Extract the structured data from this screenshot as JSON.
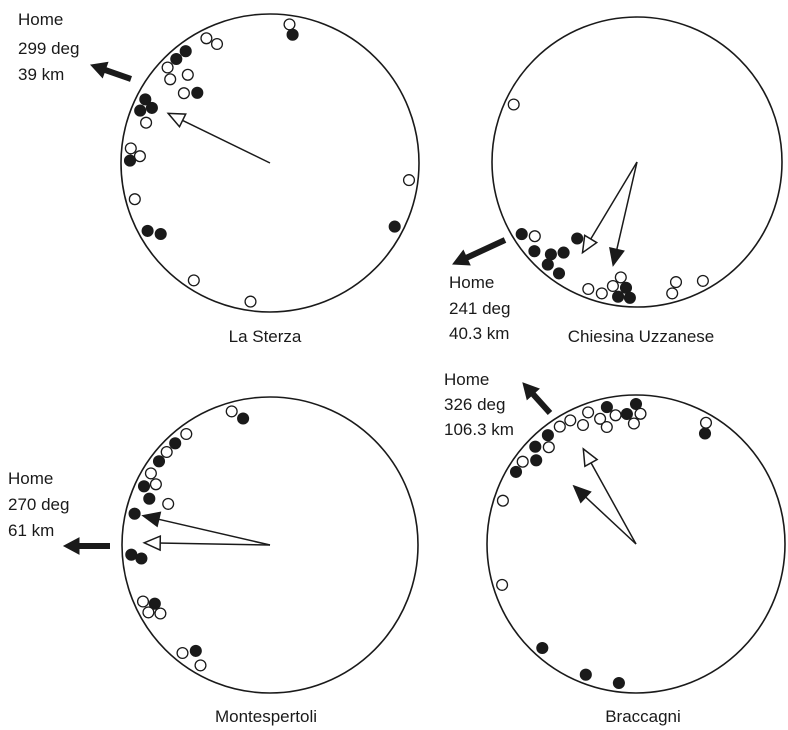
{
  "colors": {
    "ink": "#1a1a1a",
    "background": "#ffffff"
  },
  "legend_symbols": {
    "filled": "filled-circle",
    "open": "open-circle"
  },
  "panels": [
    {
      "id": "la-sterza",
      "site_name": "La Sterza",
      "home": {
        "label": "Home",
        "bearing_text": "299 deg",
        "distance_text": "39 km",
        "bearing_deg": 299
      },
      "mean_vectors": [
        {
          "kind": "open",
          "bearing_deg": 296,
          "length": 0.76
        }
      ],
      "points": [
        {
          "bearing_deg": 8,
          "kind": "open"
        },
        {
          "bearing_deg": 10,
          "kind": "filled"
        },
        {
          "bearing_deg": 333,
          "kind": "open"
        },
        {
          "bearing_deg": 336,
          "kind": "open"
        },
        {
          "bearing_deg": 323,
          "kind": "filled"
        },
        {
          "bearing_deg": 318,
          "kind": "filled"
        },
        {
          "bearing_deg": 317,
          "kind": "open"
        },
        {
          "bearing_deg": 313,
          "kind": "open"
        },
        {
          "bearing_deg": 310,
          "kind": "open"
        },
        {
          "bearing_deg": 309,
          "kind": "open"
        },
        {
          "bearing_deg": 314,
          "kind": "filled"
        },
        {
          "bearing_deg": 297,
          "kind": "filled"
        },
        {
          "bearing_deg": 295,
          "kind": "filled"
        },
        {
          "bearing_deg": 292,
          "kind": "filled"
        },
        {
          "bearing_deg": 288,
          "kind": "open"
        },
        {
          "bearing_deg": 276,
          "kind": "open"
        },
        {
          "bearing_deg": 273,
          "kind": "open"
        },
        {
          "bearing_deg": 271,
          "kind": "filled"
        },
        {
          "bearing_deg": 255,
          "kind": "open"
        },
        {
          "bearing_deg": 241,
          "kind": "filled"
        },
        {
          "bearing_deg": 237,
          "kind": "filled"
        },
        {
          "bearing_deg": 213,
          "kind": "open"
        },
        {
          "bearing_deg": 188,
          "kind": "open"
        },
        {
          "bearing_deg": 97,
          "kind": "open"
        },
        {
          "bearing_deg": 117,
          "kind": "filled"
        }
      ]
    },
    {
      "id": "chiesina-uzzanese",
      "site_name": "Chiesina Uzzanese",
      "home": {
        "label": "Home",
        "bearing_text": "241 deg",
        "distance_text": "40.3 km",
        "bearing_deg": 241
      },
      "mean_vectors": [
        {
          "kind": "open",
          "bearing_deg": 211,
          "length": 0.73
        },
        {
          "kind": "filled",
          "bearing_deg": 193,
          "length": 0.73
        }
      ],
      "points": [
        {
          "bearing_deg": 295,
          "kind": "open"
        },
        {
          "bearing_deg": 238,
          "kind": "filled"
        },
        {
          "bearing_deg": 234,
          "kind": "open"
        },
        {
          "bearing_deg": 229,
          "kind": "filled"
        },
        {
          "bearing_deg": 221,
          "kind": "filled"
        },
        {
          "bearing_deg": 223,
          "kind": "filled"
        },
        {
          "bearing_deg": 219,
          "kind": "filled"
        },
        {
          "bearing_deg": 218,
          "kind": "filled"
        },
        {
          "bearing_deg": 215,
          "kind": "filled"
        },
        {
          "bearing_deg": 201,
          "kind": "open"
        },
        {
          "bearing_deg": 195,
          "kind": "open"
        },
        {
          "bearing_deg": 191,
          "kind": "open"
        },
        {
          "bearing_deg": 188,
          "kind": "filled"
        },
        {
          "bearing_deg": 185,
          "kind": "filled"
        },
        {
          "bearing_deg": 183,
          "kind": "filled"
        },
        {
          "bearing_deg": 165,
          "kind": "open"
        },
        {
          "bearing_deg": 162,
          "kind": "open"
        },
        {
          "bearing_deg": 151,
          "kind": "open"
        },
        {
          "bearing_deg": 188,
          "kind": "open"
        }
      ]
    },
    {
      "id": "montespertoli",
      "site_name": "Montespertoli",
      "home": {
        "label": "Home",
        "bearing_text": "270 deg",
        "distance_text": "61 km",
        "bearing_deg": 270
      },
      "mean_vectors": [
        {
          "kind": "filled",
          "bearing_deg": 283,
          "length": 0.88
        },
        {
          "kind": "open",
          "bearing_deg": 271,
          "length": 0.85
        }
      ],
      "points": [
        {
          "bearing_deg": 344,
          "kind": "open"
        },
        {
          "bearing_deg": 348,
          "kind": "filled"
        },
        {
          "bearing_deg": 323,
          "kind": "open"
        },
        {
          "bearing_deg": 317,
          "kind": "filled"
        },
        {
          "bearing_deg": 312,
          "kind": "open"
        },
        {
          "bearing_deg": 307,
          "kind": "filled"
        },
        {
          "bearing_deg": 301,
          "kind": "open"
        },
        {
          "bearing_deg": 298,
          "kind": "open"
        },
        {
          "bearing_deg": 295,
          "kind": "filled"
        },
        {
          "bearing_deg": 291,
          "kind": "filled"
        },
        {
          "bearing_deg": 292,
          "kind": "open"
        },
        {
          "bearing_deg": 283,
          "kind": "filled"
        },
        {
          "bearing_deg": 266,
          "kind": "filled"
        },
        {
          "bearing_deg": 264,
          "kind": "filled"
        },
        {
          "bearing_deg": 246,
          "kind": "open"
        },
        {
          "bearing_deg": 243,
          "kind": "filled"
        },
        {
          "bearing_deg": 241,
          "kind": "open"
        },
        {
          "bearing_deg": 238,
          "kind": "open"
        },
        {
          "bearing_deg": 219,
          "kind": "open"
        },
        {
          "bearing_deg": 215,
          "kind": "filled"
        },
        {
          "bearing_deg": 210,
          "kind": "open"
        }
      ]
    },
    {
      "id": "braccagni",
      "site_name": "Braccagni",
      "home": {
        "label": "Home",
        "bearing_text": "326 deg",
        "distance_text": "106.3 km",
        "bearing_deg": 326
      },
      "mean_vectors": [
        {
          "kind": "open",
          "bearing_deg": 331,
          "length": 0.73
        },
        {
          "kind": "filled",
          "bearing_deg": 313,
          "length": 0.57
        }
      ],
      "points": [
        {
          "bearing_deg": 0,
          "kind": "filled"
        },
        {
          "bearing_deg": 356,
          "kind": "filled"
        },
        {
          "bearing_deg": 348,
          "kind": "filled"
        },
        {
          "bearing_deg": 344,
          "kind": "open"
        },
        {
          "bearing_deg": 340,
          "kind": "open"
        },
        {
          "bearing_deg": 336,
          "kind": "open"
        },
        {
          "bearing_deg": 332,
          "kind": "open"
        },
        {
          "bearing_deg": 327,
          "kind": "open"
        },
        {
          "bearing_deg": 321,
          "kind": "filled"
        },
        {
          "bearing_deg": 318,
          "kind": "open"
        },
        {
          "bearing_deg": 314,
          "kind": "filled"
        },
        {
          "bearing_deg": 310,
          "kind": "filled"
        },
        {
          "bearing_deg": 306,
          "kind": "open"
        },
        {
          "bearing_deg": 301,
          "kind": "filled"
        },
        {
          "bearing_deg": 2,
          "kind": "open"
        },
        {
          "bearing_deg": 359,
          "kind": "open"
        },
        {
          "bearing_deg": 351,
          "kind": "open"
        },
        {
          "bearing_deg": 346,
          "kind": "open"
        },
        {
          "bearing_deg": 30,
          "kind": "open"
        },
        {
          "bearing_deg": 32,
          "kind": "filled"
        },
        {
          "bearing_deg": 288,
          "kind": "open"
        },
        {
          "bearing_deg": 253,
          "kind": "open"
        },
        {
          "bearing_deg": 222,
          "kind": "filled"
        },
        {
          "bearing_deg": 201,
          "kind": "filled"
        },
        {
          "bearing_deg": 187,
          "kind": "filled"
        }
      ]
    }
  ]
}
